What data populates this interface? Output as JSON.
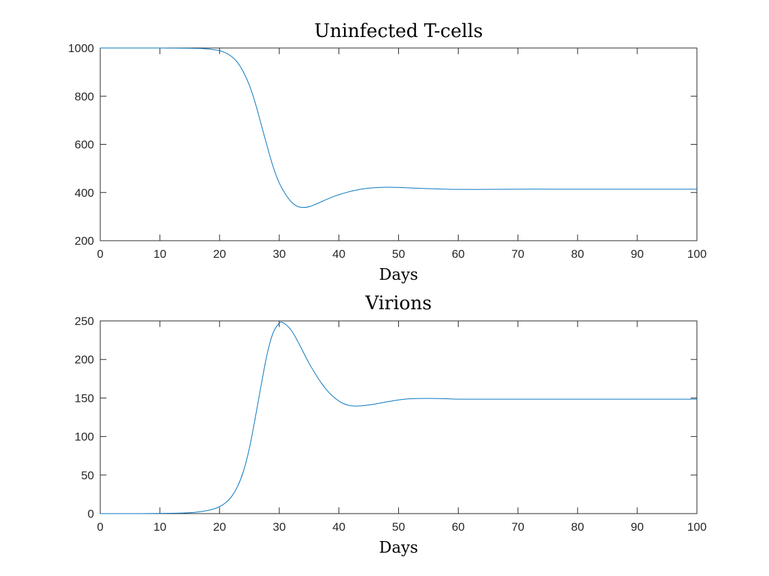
{
  "chart_data": [
    {
      "type": "line",
      "title": "Uninfected T-cells",
      "xlabel": "Days",
      "ylabel": "",
      "xlim": [
        0,
        100
      ],
      "ylim": [
        200,
        1000
      ],
      "xticks": [
        0,
        10,
        20,
        30,
        40,
        50,
        60,
        70,
        80,
        90,
        100
      ],
      "yticks": [
        200,
        400,
        600,
        800,
        1000
      ],
      "xtick_labels": [
        "0",
        "10",
        "20",
        "30",
        "40",
        "50",
        "60",
        "70",
        "80",
        "90",
        "100"
      ],
      "ytick_labels": [
        "200",
        "400",
        "600",
        "800",
        "1000"
      ],
      "grid": false,
      "color": "#0072BD",
      "series": [
        {
          "x": [
            0,
            5,
            10,
            15,
            17,
            18,
            19,
            20,
            21,
            22,
            23,
            24,
            25,
            26,
            27,
            28,
            29,
            30,
            31,
            32,
            33,
            34,
            35,
            36,
            37,
            38,
            39,
            40,
            42,
            44,
            46,
            48,
            50,
            52,
            55,
            58,
            60,
            65,
            70,
            75,
            80,
            90,
            100
          ],
          "y": [
            1000,
            1000,
            1000,
            999,
            998,
            996,
            993,
            989,
            980,
            965,
            940,
            900,
            845,
            770,
            680,
            590,
            505,
            440,
            395,
            362,
            343,
            338,
            341,
            350,
            361,
            372,
            382,
            391,
            405,
            415,
            420,
            422,
            421,
            419,
            416,
            414,
            413,
            413,
            414,
            414,
            414,
            414,
            414
          ]
        }
      ]
    },
    {
      "type": "line",
      "title": "Virions",
      "xlabel": "Days",
      "ylabel": "",
      "xlim": [
        0,
        100
      ],
      "ylim": [
        0,
        250
      ],
      "xticks": [
        0,
        10,
        20,
        30,
        40,
        50,
        60,
        70,
        80,
        90,
        100
      ],
      "yticks": [
        0,
        50,
        100,
        150,
        200,
        250
      ],
      "xtick_labels": [
        "0",
        "10",
        "20",
        "30",
        "40",
        "50",
        "60",
        "70",
        "80",
        "90",
        "100"
      ],
      "ytick_labels": [
        "0",
        "50",
        "100",
        "150",
        "200",
        "250"
      ],
      "grid": false,
      "color": "#0072BD",
      "series": [
        {
          "x": [
            0,
            5,
            10,
            14,
            16,
            18,
            19,
            20,
            21,
            22,
            23,
            24,
            25,
            26,
            27,
            28,
            29,
            30,
            30.5,
            31,
            32,
            33,
            34,
            35,
            36,
            37,
            38,
            39,
            40,
            41,
            42,
            43,
            44,
            46,
            48,
            50,
            52,
            55,
            58,
            60,
            65,
            70,
            80,
            90,
            100
          ],
          "y": [
            0,
            0,
            0.2,
            0.8,
            1.8,
            4,
            6,
            9,
            14,
            22,
            35,
            55,
            85,
            125,
            168,
            208,
            235,
            247,
            248,
            246,
            238,
            225,
            210,
            195,
            182,
            170,
            160,
            152,
            146,
            142,
            140,
            139.5,
            140,
            142,
            145,
            147.5,
            149,
            149.5,
            149,
            148.5,
            148.5,
            148.5,
            148.5,
            148.5,
            148.5
          ]
        }
      ]
    }
  ]
}
